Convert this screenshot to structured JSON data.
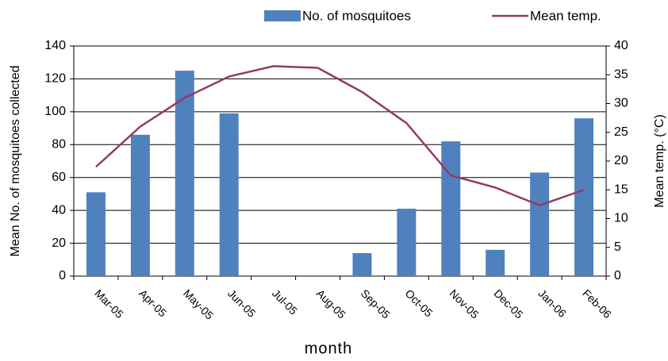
{
  "chart_data": {
    "type": "bar",
    "categories": [
      "Mar-05",
      "Apr-05",
      "May-05",
      "Jun-05",
      "Jul-05",
      "Aug-05",
      "Sep-05",
      "Oct-05",
      "Nov-05",
      "Dec-05",
      "Jan-06",
      "Feb-06"
    ],
    "series": [
      {
        "name": "No. of mosquitoes",
        "color": "#4f81bd",
        "type": "bar",
        "values": [
          51,
          86,
          125,
          99,
          null,
          null,
          14,
          41,
          82,
          16,
          63,
          96
        ]
      },
      {
        "name": "Mean temp.",
        "color": "#953a62",
        "type": "line",
        "axis": "y2",
        "values": [
          19,
          26,
          31,
          34.7,
          36.5,
          36.2,
          32,
          26.6,
          17.5,
          15.4,
          12.3,
          15
        ]
      }
    ],
    "xlabel": "month",
    "ylabel": "Mean No.  of mosquitoes collected",
    "y2label": "Mean temp. (°C)",
    "ylim": [
      0,
      140
    ],
    "yticks": [
      0,
      20,
      40,
      60,
      80,
      100,
      120,
      140
    ],
    "y2lim": [
      0,
      40
    ],
    "y2ticks": [
      0,
      5,
      10,
      15,
      20,
      25,
      30,
      35,
      40
    ],
    "grid": true,
    "legend": "top"
  }
}
